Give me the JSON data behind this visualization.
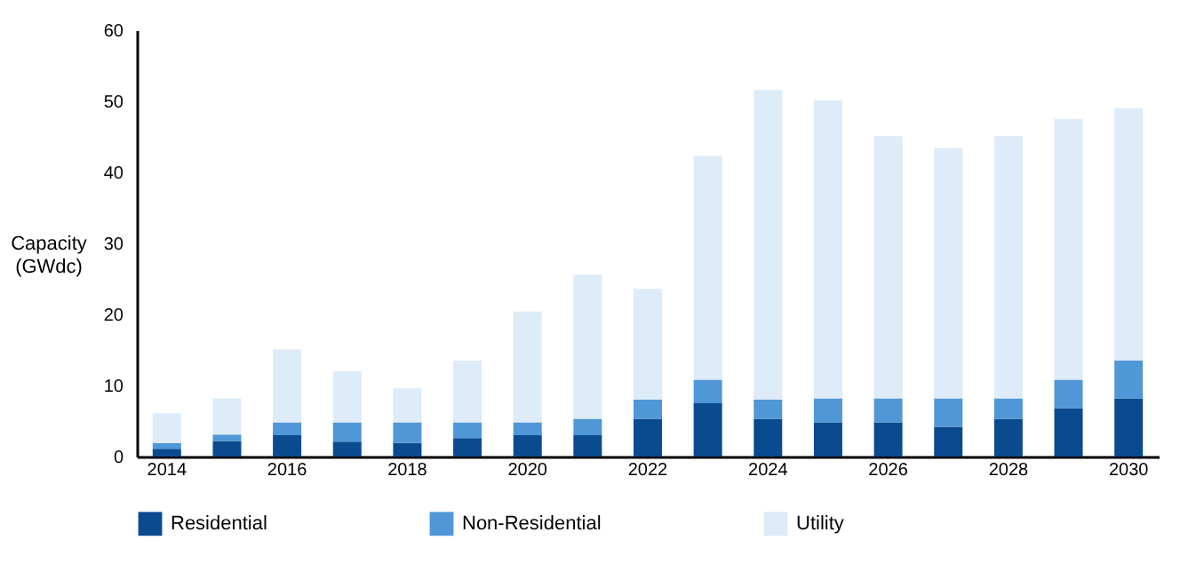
{
  "chart_data": {
    "type": "bar",
    "stacked": true,
    "ylabel": "Capacity (GWdc)",
    "categories": [
      "2014",
      null,
      "2016",
      null,
      "2018",
      null,
      "2020",
      null,
      "2022",
      null,
      "2024",
      null,
      "2026",
      null,
      "2028",
      null,
      "2030"
    ],
    "series": [
      {
        "name": "Residential",
        "color": "#0a4a8f",
        "values": [
          1.1,
          2.2,
          3.0,
          2.1,
          1.9,
          2.6,
          3.0,
          3.0,
          5.3,
          7.5,
          5.3,
          4.8,
          4.8,
          4.2,
          5.3,
          6.8,
          8.2
        ]
      },
      {
        "name": "Non-Residential",
        "color": "#4f97d6",
        "values": [
          0.8,
          0.9,
          1.8,
          2.7,
          2.9,
          2.2,
          1.8,
          2.3,
          2.7,
          3.3,
          2.7,
          3.4,
          3.4,
          4.0,
          2.9,
          4.0,
          5.3
        ]
      },
      {
        "name": "Utility",
        "color": "#deebf8",
        "values": [
          4.2,
          5.1,
          10.3,
          7.2,
          4.8,
          8.7,
          15.6,
          20.3,
          15.6,
          31.5,
          43.6,
          41.9,
          36.9,
          35.2,
          36.9,
          36.7,
          35.5
        ]
      }
    ],
    "ylim": [
      0,
      60
    ],
    "yticks": [
      0,
      10,
      20,
      30,
      40,
      50,
      60
    ],
    "grid": false,
    "legend": "bottom"
  }
}
